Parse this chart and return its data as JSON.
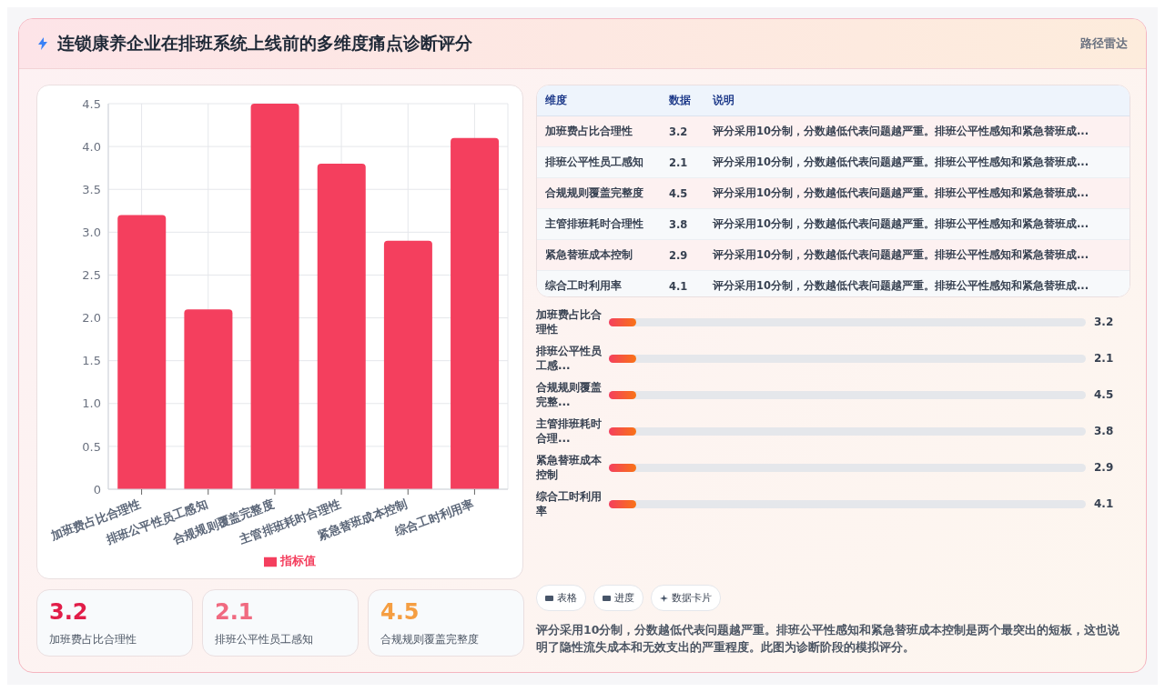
{
  "chart_data": [
    {
      "type": "bar",
      "title": "连锁康养企业在排班系统上线前的多维度痛点诊断评分",
      "categories": [
        "加班费占比合理性",
        "排班公平性员工感知",
        "合规规则覆盖完整度",
        "主管排班耗时合理性",
        "紧急替班成本控制",
        "综合工时利用率"
      ],
      "series": [
        {
          "name": "指标值",
          "color": "#f43f5e",
          "values": [
            3.2,
            2.1,
            4.5,
            3.8,
            2.9,
            4.1
          ]
        }
      ],
      "ylim": [
        0,
        4.5
      ],
      "yticks": [
        0,
        {
          "value": 0.5,
          "label": "0.5"
        },
        {
          "value": 1,
          "label": "1.0"
        },
        {
          "value": 1.5,
          "label": "1.5"
        },
        {
          "value": 2,
          "label": "2.0"
        },
        {
          "value": 2.5,
          "label": "2.5"
        },
        {
          "value": 3,
          "label": "3.0"
        },
        {
          "value": 3.5,
          "label": "3.5"
        },
        {
          "value": 4,
          "label": "4.0"
        },
        {
          "value": 4.5,
          "label": "4.5"
        }
      ],
      "grid": true,
      "legend": "bottom",
      "annotations": [
        "路径雷达"
      ]
    },
    {
      "type": "other",
      "categories": [
        "加班费占比合理性",
        "排班公平性员工感知",
        "合规规则覆盖完整度",
        "主管排班耗时合理性",
        "紧急替班成本控制",
        "综合工时利用率"
      ],
      "values": [
        3.2,
        2.1,
        4.5,
        3.8,
        2.9,
        4.1
      ],
      "data_labels": true,
      "annotations": [
        "维度",
        "数据",
        "说明",
        "评分采用10分制，分数越低代表问题越严重。排班公平性感知和紧急替班成..."
      ]
    },
    {
      "type": "other",
      "categories": [
        "加班费占比合理性",
        "排班公平性员工感...",
        "合规规则覆盖完整...",
        "主管排班耗时合理...",
        "紧急替班成本控制",
        "综合工时利用率"
      ],
      "values": [
        3.2,
        2.1,
        4.5,
        3.8,
        2.9,
        4.1
      ],
      "data_labels": true,
      "annotations": [
        "表格",
        "进度",
        "数据卡片",
        "评分采用10分制，分数越低代表问题越严重。排班公平性感知和紧急替班成本控制是两个最突出的短板，这也说明了隐性流失成本和无效支出的严重程度。此图为诊断阶段的模拟评分。"
      ]
    },
    {
      "type": "other",
      "categories": [
        "加班费占比合理性",
        "排班公平性员工感知",
        "合规规则覆盖完整度"
      ],
      "values": [
        3.2,
        2.1,
        4.5
      ],
      "data_labels": true
    }
  ]
}
